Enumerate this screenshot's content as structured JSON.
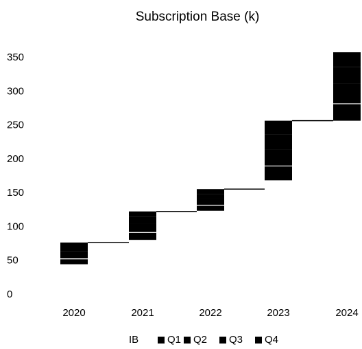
{
  "chart_data": {
    "type": "bar",
    "subtype": "stacked-waterfall",
    "title": "Subscription Base (k)",
    "categories": [
      "2020",
      "2021",
      "2022",
      "2023",
      "2024"
    ],
    "series": [
      {
        "name": "IB",
        "values": [
          44,
          80,
          123,
          168,
          256
        ]
      },
      {
        "name": "Q1",
        "values": [
          8,
          11,
          8,
          21,
          25
        ]
      },
      {
        "name": "Q2",
        "values": [
          10,
          13,
          10,
          25,
          30
        ]
      },
      {
        "name": "Q3",
        "values": [
          8,
          10,
          7,
          22,
          24
        ]
      },
      {
        "name": "Q4",
        "values": [
          6,
          8,
          7,
          20,
          22
        ]
      }
    ],
    "ylim": [
      0,
      350
    ],
    "yticks": [
      0,
      50,
      100,
      150,
      200,
      250,
      300,
      350
    ],
    "gridlines": false,
    "legend_position": "bottom",
    "colors": {
      "bars": "#000000",
      "segment_divider": "#ffffff",
      "connector": "#000000"
    }
  }
}
